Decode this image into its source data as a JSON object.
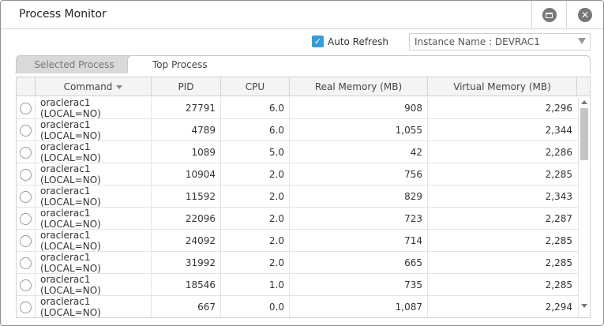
{
  "window": {
    "title": "Process Monitor"
  },
  "toolbar": {
    "auto_refresh_label": "Auto Refresh",
    "auto_refresh_checked": true,
    "instance_label": "Instance Name : DEVRAC1"
  },
  "tabs": [
    {
      "label": "Selected Process",
      "active": false
    },
    {
      "label": "Top Process",
      "active": true
    }
  ],
  "table": {
    "columns": [
      "",
      "Command",
      "PID",
      "CPU",
      "Real Memory (MB)",
      "Virtual Memory (MB)"
    ],
    "sorted_column": "Command",
    "rows": [
      {
        "command": "oraclerac1 (LOCAL=NO)",
        "pid": "27791",
        "cpu": "6.0",
        "real_mem": "908",
        "virt_mem": "2,296"
      },
      {
        "command": "oraclerac1 (LOCAL=NO)",
        "pid": "4789",
        "cpu": "6.0",
        "real_mem": "1,055",
        "virt_mem": "2,344"
      },
      {
        "command": "oraclerac1 (LOCAL=NO)",
        "pid": "1089",
        "cpu": "5.0",
        "real_mem": "42",
        "virt_mem": "2,286"
      },
      {
        "command": "oraclerac1 (LOCAL=NO)",
        "pid": "10904",
        "cpu": "2.0",
        "real_mem": "756",
        "virt_mem": "2,285"
      },
      {
        "command": "oraclerac1 (LOCAL=NO)",
        "pid": "11592",
        "cpu": "2.0",
        "real_mem": "829",
        "virt_mem": "2,343"
      },
      {
        "command": "oraclerac1 (LOCAL=NO)",
        "pid": "22096",
        "cpu": "2.0",
        "real_mem": "723",
        "virt_mem": "2,287"
      },
      {
        "command": "oraclerac1 (LOCAL=NO)",
        "pid": "24092",
        "cpu": "2.0",
        "real_mem": "714",
        "virt_mem": "2,285"
      },
      {
        "command": "oraclerac1 (LOCAL=NO)",
        "pid": "31992",
        "cpu": "2.0",
        "real_mem": "665",
        "virt_mem": "2,285"
      },
      {
        "command": "oraclerac1 (LOCAL=NO)",
        "pid": "18546",
        "cpu": "1.0",
        "real_mem": "735",
        "virt_mem": "2,285"
      },
      {
        "command": "oraclerac1 (LOCAL=NO)",
        "pid": "667",
        "cpu": "0.0",
        "real_mem": "1,087",
        "virt_mem": "2,294"
      }
    ]
  },
  "icons": {
    "maximize": "maximize-icon",
    "close": "close-icon",
    "sort": "sort-desc-icon",
    "dropdown": "chevron-down-icon"
  },
  "colors": {
    "accent": "#3a9bd9",
    "icon_gray": "#777777",
    "tab_inactive_bg": "#d9d9d9"
  }
}
